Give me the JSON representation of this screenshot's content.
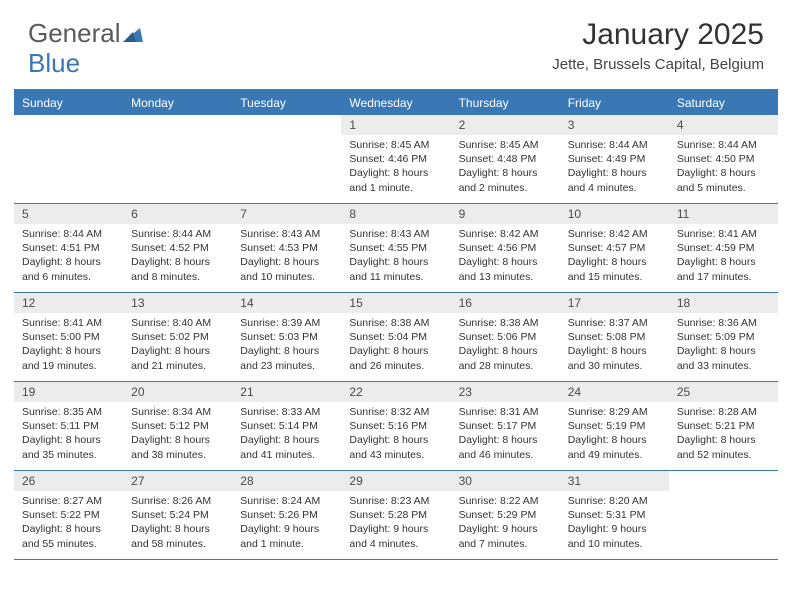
{
  "logo": {
    "text1": "General",
    "text2": "Blue"
  },
  "title": "January 2025",
  "location": "Jette, Brussels Capital, Belgium",
  "colors": {
    "accent": "#3a78b5",
    "daynum_bg": "#ececec",
    "text": "#333333",
    "logo_gray": "#5a5a5a"
  },
  "weekdays": [
    "Sunday",
    "Monday",
    "Tuesday",
    "Wednesday",
    "Thursday",
    "Friday",
    "Saturday"
  ],
  "weeks": [
    [
      {
        "n": "",
        "empty": true
      },
      {
        "n": "",
        "empty": true
      },
      {
        "n": "",
        "empty": true
      },
      {
        "n": "1",
        "sunrise": "8:45 AM",
        "sunset": "4:46 PM",
        "daylight": "8 hours and 1 minute."
      },
      {
        "n": "2",
        "sunrise": "8:45 AM",
        "sunset": "4:48 PM",
        "daylight": "8 hours and 2 minutes."
      },
      {
        "n": "3",
        "sunrise": "8:44 AM",
        "sunset": "4:49 PM",
        "daylight": "8 hours and 4 minutes."
      },
      {
        "n": "4",
        "sunrise": "8:44 AM",
        "sunset": "4:50 PM",
        "daylight": "8 hours and 5 minutes."
      }
    ],
    [
      {
        "n": "5",
        "sunrise": "8:44 AM",
        "sunset": "4:51 PM",
        "daylight": "8 hours and 6 minutes."
      },
      {
        "n": "6",
        "sunrise": "8:44 AM",
        "sunset": "4:52 PM",
        "daylight": "8 hours and 8 minutes."
      },
      {
        "n": "7",
        "sunrise": "8:43 AM",
        "sunset": "4:53 PM",
        "daylight": "8 hours and 10 minutes."
      },
      {
        "n": "8",
        "sunrise": "8:43 AM",
        "sunset": "4:55 PM",
        "daylight": "8 hours and 11 minutes."
      },
      {
        "n": "9",
        "sunrise": "8:42 AM",
        "sunset": "4:56 PM",
        "daylight": "8 hours and 13 minutes."
      },
      {
        "n": "10",
        "sunrise": "8:42 AM",
        "sunset": "4:57 PM",
        "daylight": "8 hours and 15 minutes."
      },
      {
        "n": "11",
        "sunrise": "8:41 AM",
        "sunset": "4:59 PM",
        "daylight": "8 hours and 17 minutes."
      }
    ],
    [
      {
        "n": "12",
        "sunrise": "8:41 AM",
        "sunset": "5:00 PM",
        "daylight": "8 hours and 19 minutes."
      },
      {
        "n": "13",
        "sunrise": "8:40 AM",
        "sunset": "5:02 PM",
        "daylight": "8 hours and 21 minutes."
      },
      {
        "n": "14",
        "sunrise": "8:39 AM",
        "sunset": "5:03 PM",
        "daylight": "8 hours and 23 minutes."
      },
      {
        "n": "15",
        "sunrise": "8:38 AM",
        "sunset": "5:04 PM",
        "daylight": "8 hours and 26 minutes."
      },
      {
        "n": "16",
        "sunrise": "8:38 AM",
        "sunset": "5:06 PM",
        "daylight": "8 hours and 28 minutes."
      },
      {
        "n": "17",
        "sunrise": "8:37 AM",
        "sunset": "5:08 PM",
        "daylight": "8 hours and 30 minutes."
      },
      {
        "n": "18",
        "sunrise": "8:36 AM",
        "sunset": "5:09 PM",
        "daylight": "8 hours and 33 minutes."
      }
    ],
    [
      {
        "n": "19",
        "sunrise": "8:35 AM",
        "sunset": "5:11 PM",
        "daylight": "8 hours and 35 minutes."
      },
      {
        "n": "20",
        "sunrise": "8:34 AM",
        "sunset": "5:12 PM",
        "daylight": "8 hours and 38 minutes."
      },
      {
        "n": "21",
        "sunrise": "8:33 AM",
        "sunset": "5:14 PM",
        "daylight": "8 hours and 41 minutes."
      },
      {
        "n": "22",
        "sunrise": "8:32 AM",
        "sunset": "5:16 PM",
        "daylight": "8 hours and 43 minutes."
      },
      {
        "n": "23",
        "sunrise": "8:31 AM",
        "sunset": "5:17 PM",
        "daylight": "8 hours and 46 minutes."
      },
      {
        "n": "24",
        "sunrise": "8:29 AM",
        "sunset": "5:19 PM",
        "daylight": "8 hours and 49 minutes."
      },
      {
        "n": "25",
        "sunrise": "8:28 AM",
        "sunset": "5:21 PM",
        "daylight": "8 hours and 52 minutes."
      }
    ],
    [
      {
        "n": "26",
        "sunrise": "8:27 AM",
        "sunset": "5:22 PM",
        "daylight": "8 hours and 55 minutes."
      },
      {
        "n": "27",
        "sunrise": "8:26 AM",
        "sunset": "5:24 PM",
        "daylight": "8 hours and 58 minutes."
      },
      {
        "n": "28",
        "sunrise": "8:24 AM",
        "sunset": "5:26 PM",
        "daylight": "9 hours and 1 minute."
      },
      {
        "n": "29",
        "sunrise": "8:23 AM",
        "sunset": "5:28 PM",
        "daylight": "9 hours and 4 minutes."
      },
      {
        "n": "30",
        "sunrise": "8:22 AM",
        "sunset": "5:29 PM",
        "daylight": "9 hours and 7 minutes."
      },
      {
        "n": "31",
        "sunrise": "8:20 AM",
        "sunset": "5:31 PM",
        "daylight": "9 hours and 10 minutes."
      },
      {
        "n": "",
        "empty": true
      }
    ]
  ]
}
